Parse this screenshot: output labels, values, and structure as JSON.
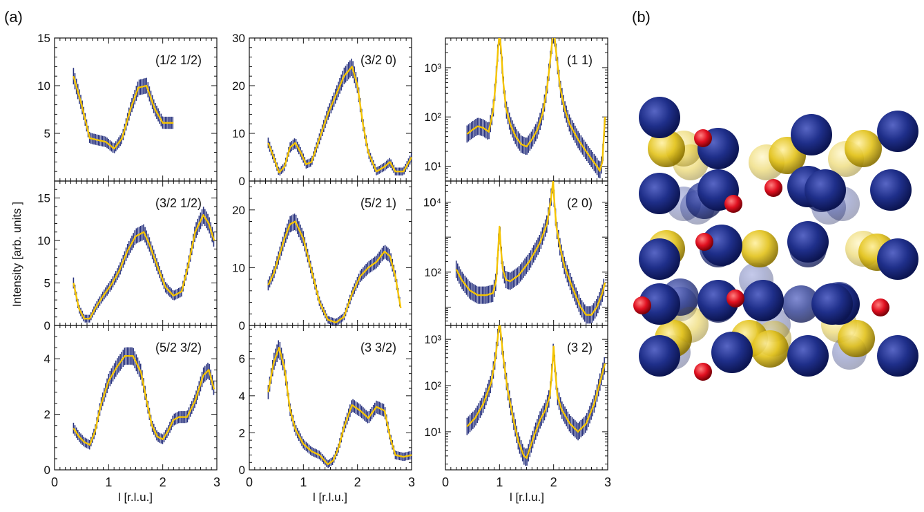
{
  "panel_labels": {
    "a": "(a)",
    "b": "(b)"
  },
  "ylabel": "Intensity [arb. units ]",
  "xlabel": "l [r.l.u.]",
  "colors": {
    "fit": "#f5c400",
    "data": "#2a3480",
    "blue_atom": "#1f2f8a",
    "yellow_atom": "#e2c21a",
    "red_atom": "#e01020"
  },
  "chart_data": [
    {
      "type": "line",
      "panel": "(1/2 1/2)",
      "yscale": "linear",
      "xlim": [
        0,
        3
      ],
      "ylim": [
        0,
        15
      ],
      "yticks": [
        5,
        10,
        15
      ],
      "xticks": [],
      "x": [
        0.35,
        0.5,
        0.65,
        0.8,
        0.95,
        1.1,
        1.25,
        1.4,
        1.55,
        1.7,
        1.85,
        2.0,
        2.2
      ],
      "values": [
        11,
        8,
        4.5,
        4.3,
        4.1,
        3.4,
        4.5,
        7.5,
        9.8,
        10,
        7.6,
        6.1,
        6.1
      ]
    },
    {
      "type": "line",
      "panel": "(3/2 0)",
      "yscale": "linear",
      "xlim": [
        0,
        3
      ],
      "ylim": [
        0,
        30
      ],
      "yticks": [
        0,
        10,
        20,
        30
      ],
      "xticks": [],
      "x": [
        0.35,
        0.45,
        0.55,
        0.65,
        0.75,
        0.85,
        0.95,
        1.05,
        1.15,
        1.3,
        1.45,
        1.6,
        1.75,
        1.9,
        2.0,
        2.1,
        2.2,
        2.35,
        2.5,
        2.6,
        2.7,
        2.85,
        3.0
      ],
      "values": [
        8,
        5,
        1.8,
        3,
        7,
        8,
        6,
        3.5,
        4,
        9,
        14,
        18,
        22,
        24,
        20,
        12,
        6,
        2,
        3,
        4,
        2,
        2,
        5
      ]
    },
    {
      "type": "line",
      "panel": "(1 1)",
      "yscale": "log",
      "xlim": [
        0,
        3
      ],
      "ylim": [
        5,
        4000
      ],
      "yticks": [
        10,
        100,
        1000
      ],
      "yticklabels": [
        "10¹",
        "10²",
        "10³"
      ],
      "xticks": [],
      "x": [
        0.4,
        0.5,
        0.6,
        0.7,
        0.8,
        0.88,
        0.93,
        0.97,
        1.0,
        1.03,
        1.07,
        1.12,
        1.2,
        1.3,
        1.4,
        1.5,
        1.6,
        1.7,
        1.8,
        1.88,
        1.94,
        1.98,
        2.0,
        2.02,
        2.06,
        2.12,
        2.2,
        2.3,
        2.45,
        2.6,
        2.7,
        2.8,
        2.85,
        2.9,
        2.95
      ],
      "values": [
        45,
        55,
        65,
        60,
        50,
        130,
        500,
        2200,
        5000,
        2200,
        500,
        150,
        70,
        40,
        28,
        25,
        35,
        55,
        120,
        400,
        1500,
        4000,
        5000,
        4000,
        1500,
        400,
        150,
        70,
        35,
        20,
        14,
        10,
        8,
        12,
        100
      ]
    },
    {
      "type": "line",
      "panel": "(3/2 1/2)",
      "yscale": "linear",
      "xlim": [
        0,
        3
      ],
      "ylim": [
        0,
        17
      ],
      "yticks": [
        0,
        5,
        10,
        15
      ],
      "xticks": [],
      "x": [
        0.35,
        0.45,
        0.55,
        0.65,
        0.75,
        0.9,
        1.05,
        1.2,
        1.35,
        1.5,
        1.65,
        1.75,
        1.9,
        2.05,
        2.2,
        2.35,
        2.45,
        2.6,
        2.75,
        2.85,
        2.95
      ],
      "values": [
        5,
        2,
        0.8,
        0.8,
        2,
        3.5,
        4.8,
        6.5,
        8.8,
        10.5,
        11,
        9.6,
        7,
        4.5,
        3.5,
        4,
        6.5,
        11,
        13,
        12,
        10
      ]
    },
    {
      "type": "line",
      "panel": "(5/2 1)",
      "yscale": "linear",
      "xlim": [
        0,
        3
      ],
      "ylim": [
        0,
        25
      ],
      "yticks": [
        0,
        10,
        20
      ],
      "xticks": [],
      "x": [
        0.35,
        0.45,
        0.55,
        0.65,
        0.75,
        0.85,
        1.0,
        1.15,
        1.3,
        1.45,
        1.6,
        1.75,
        1.9,
        2.05,
        2.2,
        2.35,
        2.5,
        2.6,
        2.7,
        2.8
      ],
      "values": [
        7,
        9,
        12,
        15,
        17.5,
        18,
        15,
        9.5,
        4,
        1,
        0.5,
        1.5,
        5.5,
        8.5,
        10,
        11,
        12.8,
        12,
        8.5,
        3
      ]
    },
    {
      "type": "line",
      "panel": "(2 0)",
      "yscale": "log",
      "xlim": [
        0,
        3
      ],
      "ylim": [
        3,
        40000
      ],
      "yticks": [
        100,
        10000
      ],
      "yticklabels": [
        "10²",
        "10⁴"
      ],
      "xticks": [],
      "x": [
        0.2,
        0.3,
        0.45,
        0.6,
        0.75,
        0.88,
        0.94,
        0.98,
        1.0,
        1.02,
        1.06,
        1.12,
        1.2,
        1.35,
        1.55,
        1.75,
        1.88,
        1.95,
        1.99,
        2.01,
        2.05,
        2.12,
        2.2,
        2.35,
        2.5,
        2.6,
        2.7,
        2.8,
        2.9,
        2.95
      ],
      "values": [
        120,
        60,
        30,
        22,
        22,
        25,
        60,
        600,
        2000,
        600,
        120,
        60,
        55,
        80,
        200,
        700,
        2500,
        12000,
        40000,
        12000,
        2000,
        500,
        150,
        35,
        10,
        6,
        6,
        10,
        25,
        50
      ]
    },
    {
      "type": "line",
      "panel": "(5/2 3/2)",
      "yscale": "linear",
      "xlim": [
        0,
        3
      ],
      "ylim": [
        0,
        5.2
      ],
      "yticks": [
        0,
        2,
        4
      ],
      "xticks": [
        0,
        1,
        2,
        3
      ],
      "x": [
        0.35,
        0.45,
        0.55,
        0.65,
        0.75,
        0.85,
        1.0,
        1.15,
        1.3,
        1.45,
        1.6,
        1.7,
        1.8,
        1.9,
        2.0,
        2.1,
        2.2,
        2.3,
        2.45,
        2.6,
        2.75,
        2.85,
        2.95
      ],
      "values": [
        1.5,
        1.2,
        1,
        0.9,
        1.4,
        2.3,
        3.2,
        3.7,
        4.1,
        4.1,
        3.5,
        2.5,
        1.6,
        1.2,
        1.1,
        1.4,
        1.8,
        1.9,
        1.9,
        2.5,
        3.4,
        3.6,
        2.9
      ]
    },
    {
      "type": "line",
      "panel": "(3 3/2)",
      "yscale": "linear",
      "xlim": [
        0,
        3
      ],
      "ylim": [
        0,
        7.8
      ],
      "yticks": [
        0,
        2,
        4,
        6
      ],
      "xticks": [
        0,
        1,
        2,
        3
      ],
      "x": [
        0.35,
        0.45,
        0.55,
        0.65,
        0.75,
        0.85,
        1.0,
        1.15,
        1.3,
        1.45,
        1.55,
        1.65,
        1.75,
        1.9,
        2.05,
        2.2,
        2.35,
        2.5,
        2.6,
        2.7,
        2.85,
        3.0
      ],
      "values": [
        4.2,
        5.8,
        6.6,
        5.5,
        3.3,
        2.2,
        1.4,
        1.0,
        0.8,
        0.3,
        0.5,
        1.2,
        2.3,
        3.5,
        3.2,
        2.8,
        3.4,
        3.2,
        1.8,
        0.8,
        0.7,
        0.8
      ]
    },
    {
      "type": "line",
      "panel": "(3 2)",
      "yscale": "log",
      "xlim": [
        0,
        3
      ],
      "ylim": [
        1.5,
        2000
      ],
      "yticks": [
        10,
        100,
        1000
      ],
      "yticklabels": [
        "10¹",
        "10²",
        "10³"
      ],
      "xticks": [
        0,
        1,
        2,
        3
      ],
      "x": [
        0.4,
        0.55,
        0.7,
        0.85,
        0.93,
        0.98,
        1.0,
        1.02,
        1.07,
        1.15,
        1.25,
        1.35,
        1.45,
        1.5,
        1.55,
        1.65,
        1.75,
        1.85,
        1.93,
        1.98,
        2.0,
        2.02,
        2.07,
        2.15,
        2.3,
        2.45,
        2.6,
        2.75,
        2.88,
        2.95
      ],
      "values": [
        13,
        20,
        40,
        120,
        450,
        1500,
        2500,
        1500,
        400,
        80,
        20,
        6,
        3,
        2.7,
        4,
        9,
        18,
        30,
        60,
        300,
        700,
        300,
        60,
        30,
        15,
        10,
        15,
        40,
        150,
        300
      ]
    }
  ]
}
